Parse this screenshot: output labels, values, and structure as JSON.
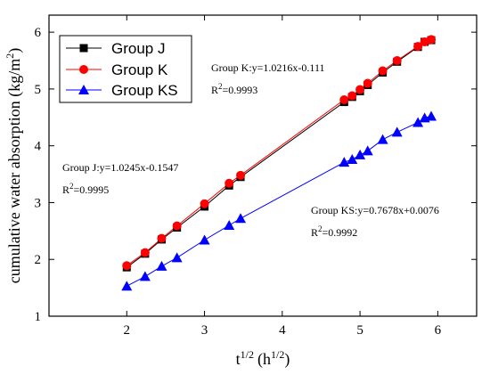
{
  "chart_data": {
    "type": "line",
    "title": "",
    "xlabel": "t",
    "xlabel_sup": "1/2",
    "xlabel_unit": "(h",
    "xlabel_unit_sup": "1/2",
    "xlabel_close": ")",
    "ylabel": "cumulative water absorption (kg/m",
    "ylabel_sup": "2",
    "ylabel_close": ")",
    "xlim": [
      1.0,
      6.5
    ],
    "ylim": [
      1.0,
      6.3
    ],
    "xticks": [
      2,
      3,
      4,
      5,
      6
    ],
    "yticks": [
      1,
      2,
      3,
      4,
      5,
      6
    ],
    "legend_position": "top-left",
    "series": [
      {
        "name": "Group J",
        "color": "#000000",
        "marker": "square",
        "x": [
          2.0,
          2.236,
          2.449,
          2.646,
          3.0,
          3.317,
          3.464,
          4.796,
          4.899,
          5.0,
          5.099,
          5.292,
          5.477,
          5.745,
          5.831,
          5.916
        ],
        "y": [
          1.86,
          2.1,
          2.35,
          2.56,
          2.93,
          3.3,
          3.45,
          4.77,
          4.86,
          4.96,
          5.07,
          5.29,
          5.48,
          5.74,
          5.83,
          5.86
        ]
      },
      {
        "name": "Group K",
        "color": "#ff0000",
        "marker": "circle",
        "x": [
          2.0,
          2.236,
          2.449,
          2.646,
          3.0,
          3.317,
          3.464,
          4.796,
          4.899,
          5.0,
          5.099,
          5.292,
          5.477,
          5.745,
          5.831,
          5.916
        ],
        "y": [
          1.89,
          2.12,
          2.37,
          2.59,
          2.98,
          3.34,
          3.48,
          4.81,
          4.88,
          4.99,
          5.1,
          5.32,
          5.5,
          5.75,
          5.83,
          5.87
        ]
      },
      {
        "name": "Group KS",
        "color": "#0000ff",
        "marker": "triangle",
        "x": [
          2.0,
          2.236,
          2.449,
          2.646,
          3.0,
          3.317,
          3.464,
          4.796,
          4.899,
          5.0,
          5.099,
          5.292,
          5.477,
          5.745,
          5.831,
          5.916
        ],
        "y": [
          1.53,
          1.7,
          1.88,
          2.03,
          2.34,
          2.6,
          2.72,
          3.71,
          3.76,
          3.84,
          3.91,
          4.11,
          4.24,
          4.41,
          4.49,
          4.52
        ]
      }
    ],
    "annotations": [
      {
        "text": "Group K:y=1.0216x-0.111",
        "r2_prefix": "R",
        "r2_sup": "2",
        "r2_value": "=0.9993"
      },
      {
        "text": "Group J:y=1.0245x-0.1547",
        "r2_prefix": "R",
        "r2_sup": "2",
        "r2_value": "=0.9995"
      },
      {
        "text": "Group KS:y=0.7678x+0.0076",
        "r2_prefix": "R",
        "r2_sup": "2",
        "r2_value": "=0.9992"
      }
    ]
  }
}
